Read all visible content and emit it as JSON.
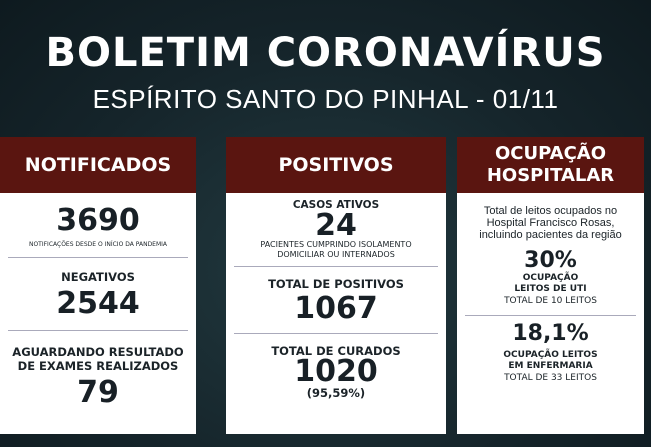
{
  "header": {
    "title": "BOLETIM CORONAVÍRUS",
    "subtitle": "ESPÍRITO SANTO DO PINHAL - 01/11"
  },
  "notificados": {
    "title": "NOTIFICADOS",
    "total": "3690",
    "total_note": "NOTIFICAÇÕES DESDE O INÍCIO DA PANDEMIA",
    "negativos_label": "NEGATIVOS",
    "negativos": "2544",
    "aguardando_label_1": "AGUARDANDO RESULTADO",
    "aguardando_label_2": "DE EXAMES REALIZADOS",
    "aguardando": "79"
  },
  "positivos": {
    "title": "POSITIVOS",
    "ativos_label": "CASOS ATIVOS",
    "ativos": "24",
    "ativos_note_1": "PACIENTES CUMPRINDO ISOLAMENTO",
    "ativos_note_2": "DOMICILIAR OU INTERNADOS",
    "total_label": "TOTAL DE POSITIVOS",
    "total": "1067",
    "curados_label": "TOTAL DE CURADOS",
    "curados": "1020",
    "curados_pct": "(95,59%)"
  },
  "ocupacao": {
    "title_1": "OCUPAÇÃO",
    "title_2": "HOSPITALAR",
    "desc_1": "Total de leitos ocupados no",
    "desc_2": "Hospital Francisco Rosas,",
    "desc_3": "incluindo pacientes da região",
    "uti_pct": "30%",
    "uti_label_1": "OCUPAÇÃO",
    "uti_label_2": "LEITOS DE UTI",
    "uti_total": "TOTAL DE 10 LEITOS",
    "enf_pct": "18,1%",
    "enf_label_1": "OCUPAÇÃO LEITOS",
    "enf_label_2": "EM ENFERMARIA",
    "enf_total": "TOTAL DE 33 LEITOS"
  },
  "colors": {
    "header_bg": "#5a1510",
    "background": "#15242a"
  }
}
